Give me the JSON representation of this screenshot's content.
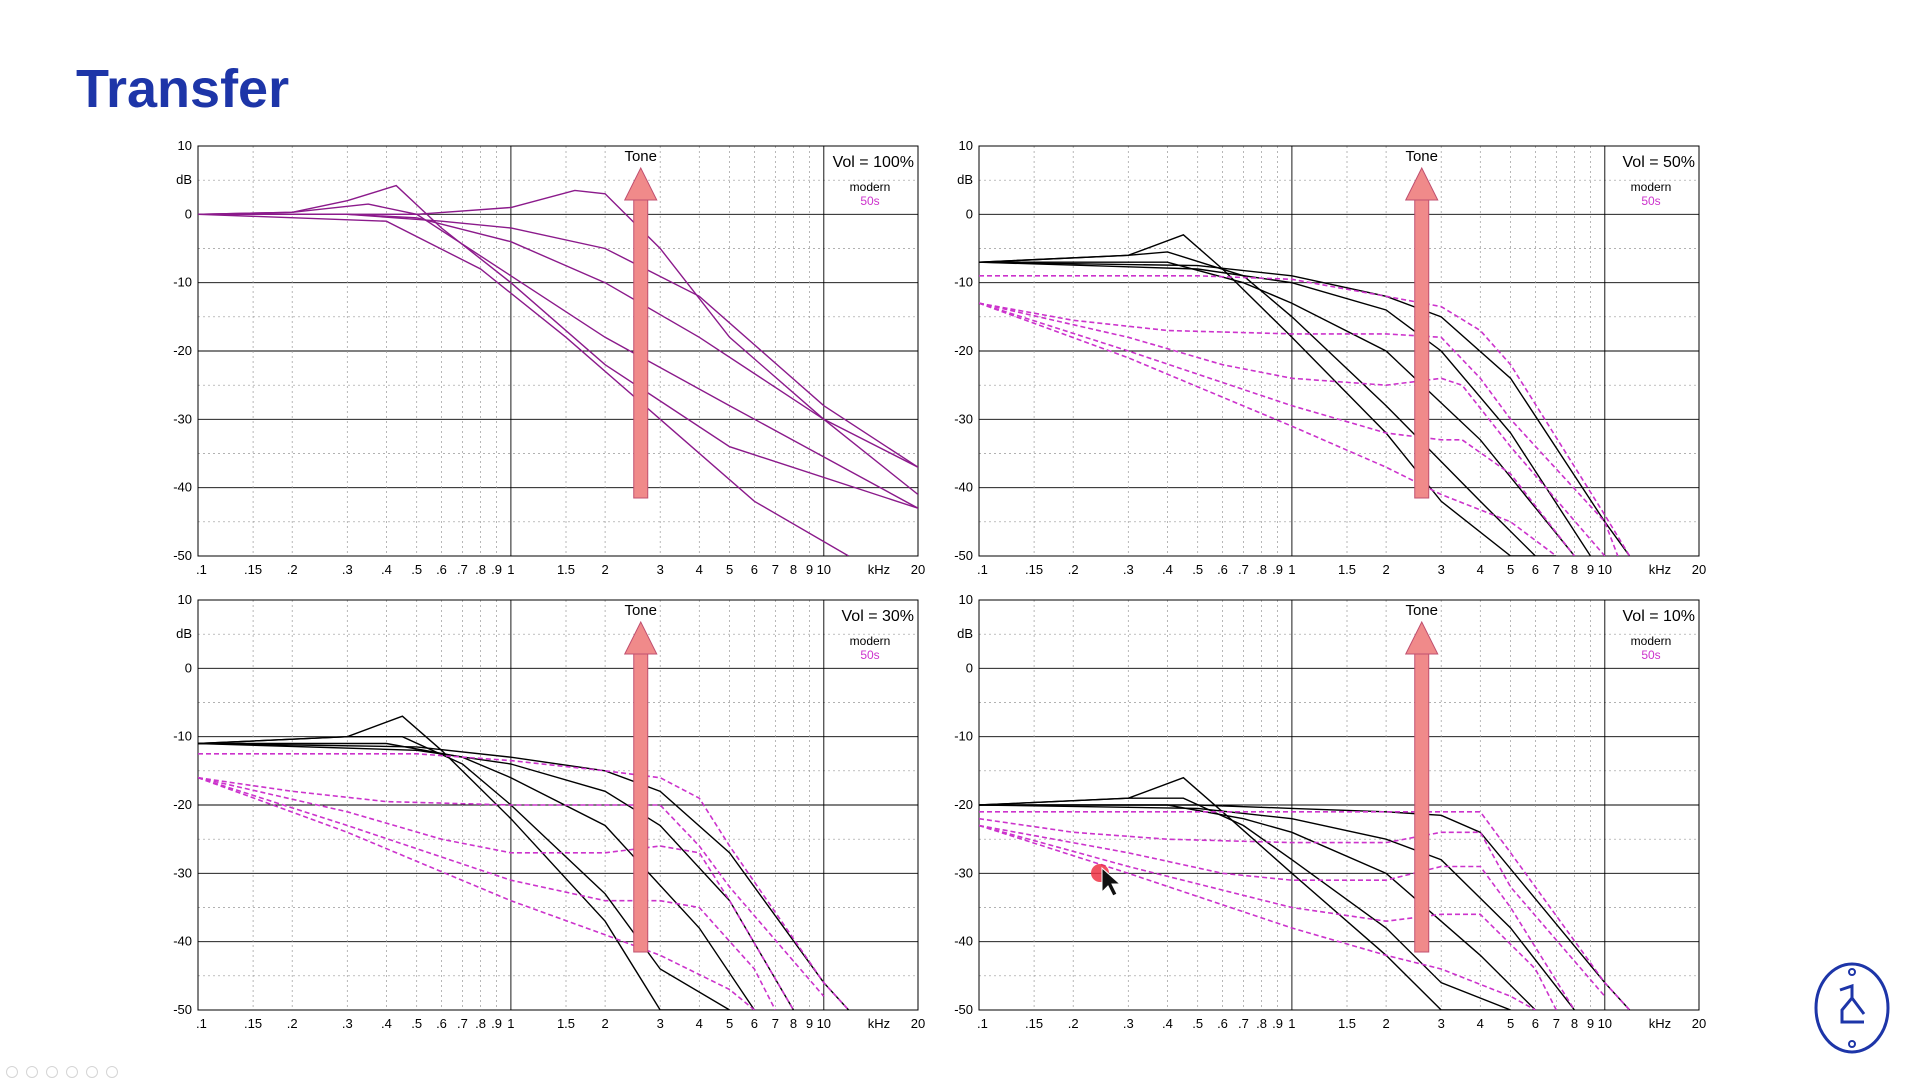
{
  "slide": {
    "title": "Transfer"
  },
  "colors": {
    "title": "#1d35a8",
    "modern": "#000000",
    "fifties": "#cc33cc",
    "tone_arrow": "#f08a8a",
    "tone_label": "#b03050"
  },
  "icons": {
    "logo": "circle-logo-icon",
    "cursor": "mouse-pointer-icon",
    "controls": [
      "prev-icon",
      "next-icon",
      "pen-icon",
      "menu-icon",
      "zoom-icon",
      "more-icon"
    ]
  },
  "chart_data": [
    {
      "type": "line",
      "x_scale": "log",
      "xlim": [
        0.1,
        20
      ],
      "ylim": [
        -50,
        10
      ],
      "y_unit_label": "dB",
      "x_unit_label": "kHz",
      "y_ticks": [
        "10",
        "0",
        "-10",
        "-20",
        "-30",
        "-40",
        "-50"
      ],
      "x_tick_labels": [
        ".1",
        ".15",
        ".2",
        ".3",
        ".4",
        ".5",
        ".6",
        ".7",
        ".8",
        ".9",
        "1",
        "1.5",
        "2",
        "3",
        "4",
        "5",
        "6",
        "7",
        "8",
        "9",
        "10",
        "20"
      ],
      "annotation": "Tone",
      "volume_label": "Vol = 100%",
      "legend": [
        {
          "name": "modern",
          "color": "#000000"
        },
        {
          "name": "50s",
          "color": "#cc33cc"
        }
      ],
      "grid": true,
      "series": [
        {
          "name": "modern",
          "style": "solid",
          "x": [
            0.1,
            0.2,
            0.3,
            0.43,
            0.6,
            1,
            2,
            5,
            20
          ],
          "y": [
            0,
            0.3,
            2,
            4.2,
            -2,
            -10,
            -22,
            -34,
            -43
          ]
        },
        {
          "name": "modern",
          "style": "solid",
          "x": [
            0.1,
            0.2,
            0.35,
            0.5,
            1,
            2,
            5,
            20
          ],
          "y": [
            0,
            0.3,
            1.5,
            0,
            -9,
            -18,
            -28,
            -43
          ]
        },
        {
          "name": "modern",
          "style": "solid",
          "x": [
            0.1,
            0.3,
            0.5,
            1,
            2,
            4,
            10,
            20
          ],
          "y": [
            0,
            0,
            -0.5,
            -4,
            -10,
            -18,
            -30,
            -37
          ]
        },
        {
          "name": "modern",
          "style": "solid",
          "x": [
            0.1,
            0.3,
            0.6,
            1,
            2,
            4,
            10,
            20
          ],
          "y": [
            0,
            0,
            -1,
            -2,
            -5,
            -12,
            -28,
            -37
          ]
        },
        {
          "name": "modern",
          "style": "solid",
          "x": [
            0.1,
            0.5,
            1,
            1.6,
            2,
            3,
            5,
            10,
            20
          ],
          "y": [
            0,
            0,
            1,
            3.5,
            3,
            -5,
            -18,
            -30,
            -41
          ]
        },
        {
          "name": "modern",
          "style": "solid",
          "x": [
            0.1,
            0.4,
            0.8,
            1.5,
            3,
            6,
            12
          ],
          "y": [
            0,
            -1,
            -8,
            -18,
            -30,
            -42,
            -50
          ]
        }
      ]
    },
    {
      "type": "line",
      "x_scale": "log",
      "xlim": [
        0.1,
        20
      ],
      "ylim": [
        -50,
        10
      ],
      "y_unit_label": "dB",
      "x_unit_label": "kHz",
      "y_ticks": [
        "10",
        "0",
        "-10",
        "-20",
        "-30",
        "-40",
        "-50"
      ],
      "x_tick_labels": [
        ".1",
        ".15",
        ".2",
        ".3",
        ".4",
        ".5",
        ".6",
        ".7",
        ".8",
        ".9",
        "1",
        "1.5",
        "2",
        "3",
        "4",
        "5",
        "6",
        "7",
        "8",
        "9",
        "10",
        "20"
      ],
      "annotation": "Tone",
      "volume_label": "Vol = 50%",
      "legend": [
        {
          "name": "modern",
          "color": "#000000"
        },
        {
          "name": "50s",
          "color": "#cc33cc"
        }
      ],
      "grid": true,
      "series": [
        {
          "name": "modern",
          "style": "solid",
          "x": [
            0.1,
            0.3,
            0.45,
            0.6,
            1,
            2,
            3,
            5,
            7
          ],
          "y": [
            -7,
            -6,
            -3,
            -8,
            -18,
            -32,
            -42,
            -50,
            -50
          ]
        },
        {
          "name": "modern",
          "style": "solid",
          "x": [
            0.1,
            0.3,
            0.4,
            0.7,
            1,
            2,
            4,
            6
          ],
          "y": [
            -7,
            -6,
            -5.5,
            -9,
            -15,
            -28,
            -42,
            -50
          ]
        },
        {
          "name": "modern",
          "style": "solid",
          "x": [
            0.1,
            0.4,
            0.7,
            1,
            2,
            4,
            8
          ],
          "y": [
            -7,
            -7,
            -10,
            -13,
            -20,
            -33,
            -50
          ]
        },
        {
          "name": "modern",
          "style": "solid",
          "x": [
            0.1,
            0.5,
            1,
            2,
            3,
            5,
            9
          ],
          "y": [
            -7,
            -8,
            -10,
            -14,
            -20,
            -32,
            -50
          ]
        },
        {
          "name": "modern",
          "style": "solid",
          "x": [
            0.1,
            0.5,
            1,
            2,
            3,
            5,
            10,
            12
          ],
          "y": [
            -7,
            -7.5,
            -9,
            -12,
            -15,
            -24,
            -45,
            -50
          ]
        },
        {
          "name": "50s",
          "style": "dashed",
          "x": [
            0.1,
            0.5,
            1,
            2,
            3,
            4,
            5,
            10,
            12
          ],
          "y": [
            -9,
            -9,
            -9.5,
            -12,
            -13.5,
            -17,
            -22,
            -44,
            -50
          ]
        },
        {
          "name": "50s",
          "style": "dashed",
          "x": [
            0.1,
            0.2,
            0.4,
            1,
            2,
            3,
            4,
            5,
            10,
            11
          ],
          "y": [
            -13,
            -15.5,
            -17,
            -17.5,
            -17.5,
            -18,
            -24,
            -30,
            -45,
            -50
          ]
        },
        {
          "name": "50s",
          "style": "dashed",
          "x": [
            0.1,
            0.3,
            0.6,
            1,
            2,
            3,
            3.5,
            5,
            10
          ],
          "y": [
            -13,
            -18,
            -22,
            -24,
            -25,
            -24,
            -25,
            -34,
            -50
          ]
        },
        {
          "name": "50s",
          "style": "dashed",
          "x": [
            0.1,
            0.3,
            1,
            2,
            3,
            3.5,
            5,
            8
          ],
          "y": [
            -13,
            -20,
            -28,
            -32,
            -33,
            -33,
            -38,
            -50
          ]
        },
        {
          "name": "50s",
          "style": "dashed",
          "x": [
            0.1,
            0.3,
            1,
            2,
            3,
            5,
            7
          ],
          "y": [
            -13,
            -21,
            -31,
            -37,
            -41,
            -45,
            -50
          ]
        }
      ]
    },
    {
      "type": "line",
      "x_scale": "log",
      "xlim": [
        0.1,
        20
      ],
      "ylim": [
        -50,
        10
      ],
      "y_unit_label": "dB",
      "x_unit_label": "kHz",
      "y_ticks": [
        "10",
        "0",
        "-10",
        "-20",
        "-30",
        "-40",
        "-50"
      ],
      "x_tick_labels": [
        ".1",
        ".15",
        ".2",
        ".3",
        ".4",
        ".5",
        ".6",
        ".7",
        ".8",
        ".9",
        "1",
        "1.5",
        "2",
        "3",
        "4",
        "5",
        "6",
        "7",
        "8",
        "9",
        "10",
        "20"
      ],
      "annotation": "Tone",
      "volume_label": "Vol = 30%",
      "legend": [
        {
          "name": "modern",
          "color": "#000000"
        },
        {
          "name": "50s",
          "color": "#cc33cc"
        }
      ],
      "grid": true,
      "series": [
        {
          "name": "modern",
          "style": "solid",
          "x": [
            0.1,
            0.3,
            0.45,
            0.6,
            1,
            2,
            3,
            5
          ],
          "y": [
            -11,
            -10,
            -7,
            -12,
            -22,
            -37,
            -50,
            -50
          ]
        },
        {
          "name": "modern",
          "style": "solid",
          "x": [
            0.1,
            0.3,
            0.45,
            0.7,
            1,
            2,
            3,
            5
          ],
          "y": [
            -11,
            -10,
            -10,
            -14,
            -20,
            -33,
            -44,
            -50
          ]
        },
        {
          "name": "modern",
          "style": "solid",
          "x": [
            0.1,
            0.4,
            0.7,
            1,
            2,
            4,
            6
          ],
          "y": [
            -11,
            -11,
            -13,
            -16,
            -23,
            -38,
            -50
          ]
        },
        {
          "name": "modern",
          "style": "solid",
          "x": [
            0.1,
            0.5,
            1,
            2,
            3,
            5,
            8
          ],
          "y": [
            -11,
            -12,
            -14,
            -18,
            -23,
            -34,
            -50
          ]
        },
        {
          "name": "modern",
          "style": "solid",
          "x": [
            0.1,
            0.5,
            1,
            2,
            3,
            5,
            10,
            12
          ],
          "y": [
            -11,
            -11.5,
            -13,
            -15,
            -18,
            -27,
            -46,
            -50
          ]
        },
        {
          "name": "50s",
          "style": "dashed",
          "x": [
            0.1,
            0.5,
            1,
            2,
            3,
            4,
            5,
            10,
            12
          ],
          "y": [
            -12.5,
            -12.5,
            -13.5,
            -15,
            -16,
            -19,
            -26,
            -46,
            -50
          ]
        },
        {
          "name": "50s",
          "style": "dashed",
          "x": [
            0.1,
            0.2,
            0.4,
            1,
            2,
            3,
            4,
            5,
            10
          ],
          "y": [
            -16,
            -18,
            -19.5,
            -20,
            -20,
            -20,
            -26,
            -32,
            -48
          ]
        },
        {
          "name": "50s",
          "style": "dashed",
          "x": [
            0.1,
            0.3,
            0.6,
            1,
            2,
            3,
            4,
            5,
            8
          ],
          "y": [
            -16,
            -21,
            -25,
            -27,
            -27,
            -26,
            -27,
            -34,
            -50
          ]
        },
        {
          "name": "50s",
          "style": "dashed",
          "x": [
            0.1,
            0.3,
            1,
            2,
            3,
            4,
            6,
            7
          ],
          "y": [
            -16,
            -23,
            -31,
            -34,
            -34,
            -35,
            -44,
            -50
          ]
        },
        {
          "name": "50s",
          "style": "dashed",
          "x": [
            0.1,
            0.3,
            1,
            2,
            3,
            5,
            6
          ],
          "y": [
            -16,
            -24,
            -34,
            -39,
            -42,
            -47,
            -50
          ]
        }
      ]
    },
    {
      "type": "line",
      "x_scale": "log",
      "xlim": [
        0.1,
        20
      ],
      "ylim": [
        -50,
        10
      ],
      "y_unit_label": "dB",
      "x_unit_label": "kHz",
      "y_ticks": [
        "10",
        "0",
        "-10",
        "-20",
        "-30",
        "-40",
        "-50"
      ],
      "x_tick_labels": [
        ".1",
        ".15",
        ".2",
        ".3",
        ".4",
        ".5",
        ".6",
        ".7",
        ".8",
        ".9",
        "1",
        "1.5",
        "2",
        "3",
        "4",
        "5",
        "6",
        "7",
        "8",
        "9",
        "10",
        "20"
      ],
      "annotation": "Tone",
      "volume_label": "Vol = 10%",
      "legend": [
        {
          "name": "modern",
          "color": "#000000"
        },
        {
          "name": "50s",
          "color": "#cc33cc"
        }
      ],
      "grid": true,
      "series": [
        {
          "name": "modern",
          "style": "solid",
          "x": [
            0.1,
            0.3,
            0.45,
            0.6,
            1,
            2,
            3,
            5
          ],
          "y": [
            -20,
            -19,
            -16,
            -21,
            -30,
            -42,
            -50,
            -50
          ]
        },
        {
          "name": "modern",
          "style": "solid",
          "x": [
            0.1,
            0.3,
            0.45,
            0.7,
            1,
            2,
            3,
            5
          ],
          "y": [
            -20,
            -19,
            -19,
            -23,
            -28,
            -38,
            -46,
            -50
          ]
        },
        {
          "name": "modern",
          "style": "solid",
          "x": [
            0.1,
            0.4,
            0.7,
            1,
            2,
            4,
            6
          ],
          "y": [
            -20,
            -20,
            -22,
            -24,
            -30,
            -42,
            -50
          ]
        },
        {
          "name": "modern",
          "style": "solid",
          "x": [
            0.1,
            0.5,
            1,
            2,
            3,
            5,
            8
          ],
          "y": [
            -20,
            -20.5,
            -22,
            -25,
            -28,
            -38,
            -50
          ]
        },
        {
          "name": "modern",
          "style": "solid",
          "x": [
            0.1,
            0.5,
            1,
            2,
            3,
            4,
            10,
            12
          ],
          "y": [
            -20,
            -20,
            -20.5,
            -21,
            -21.5,
            -24,
            -46,
            -50
          ]
        },
        {
          "name": "50s",
          "style": "dashed",
          "x": [
            0.1,
            0.5,
            1,
            2,
            3,
            4,
            5,
            10,
            12
          ],
          "y": [
            -21,
            -21,
            -21,
            -21,
            -21,
            -21,
            -27,
            -46,
            -50
          ]
        },
        {
          "name": "50s",
          "style": "dashed",
          "x": [
            0.1,
            0.2,
            0.4,
            1,
            2,
            3,
            4,
            5,
            10
          ],
          "y": [
            -22,
            -24,
            -25,
            -25.5,
            -25.5,
            -24,
            -24,
            -32,
            -48
          ]
        },
        {
          "name": "50s",
          "style": "dashed",
          "x": [
            0.1,
            0.3,
            0.6,
            1,
            2,
            3,
            4,
            5,
            8
          ],
          "y": [
            -23,
            -27,
            -30,
            -31,
            -31,
            -29,
            -29,
            -35,
            -50
          ]
        },
        {
          "name": "50s",
          "style": "dashed",
          "x": [
            0.1,
            0.3,
            1,
            2,
            3,
            4,
            6,
            7
          ],
          "y": [
            -23,
            -29,
            -35,
            -37,
            -36,
            -36,
            -44,
            -50
          ]
        },
        {
          "name": "50s",
          "style": "dashed",
          "x": [
            0.1,
            0.3,
            1,
            2,
            3,
            5,
            6
          ],
          "y": [
            -23,
            -30,
            -38,
            -42,
            -44,
            -48,
            -50
          ]
        }
      ]
    }
  ]
}
